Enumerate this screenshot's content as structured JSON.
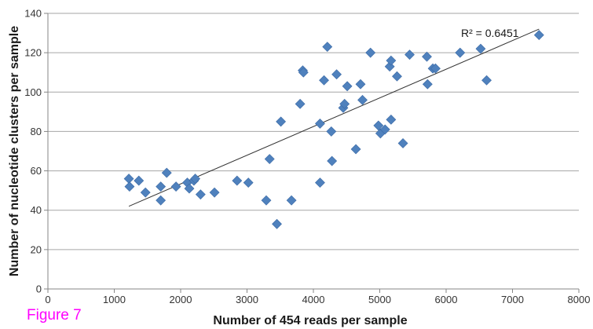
{
  "figure_label": "Figure 7",
  "chart_data": {
    "type": "scatter",
    "title": "",
    "xlabel": "Number of 454 reads per sample",
    "ylabel": "Number of nucleotide clusters per sample",
    "xlim": [
      0,
      8000
    ],
    "ylim": [
      0,
      140
    ],
    "x_ticks": [
      0,
      1000,
      2000,
      3000,
      4000,
      5000,
      6000,
      7000,
      8000
    ],
    "y_ticks": [
      0,
      20,
      40,
      60,
      80,
      100,
      120,
      140
    ],
    "grid": "horizontal",
    "legend": "none",
    "marker": "diamond",
    "marker_color": "#4f81bd",
    "trendline_color": "#333333",
    "trendline": {
      "type": "linear",
      "label": "R² = 0.6451",
      "x_start": 1220,
      "y_start": 42,
      "x_end": 7400,
      "y_end": 132
    },
    "points": [
      {
        "x": 1220,
        "y": 56
      },
      {
        "x": 1230,
        "y": 52
      },
      {
        "x": 1370,
        "y": 55
      },
      {
        "x": 1470,
        "y": 49
      },
      {
        "x": 1700,
        "y": 52
      },
      {
        "x": 1700,
        "y": 45
      },
      {
        "x": 1790,
        "y": 59
      },
      {
        "x": 1930,
        "y": 52
      },
      {
        "x": 2100,
        "y": 54
      },
      {
        "x": 2130,
        "y": 51
      },
      {
        "x": 2200,
        "y": 55
      },
      {
        "x": 2220,
        "y": 56
      },
      {
        "x": 2300,
        "y": 48
      },
      {
        "x": 2510,
        "y": 49
      },
      {
        "x": 2850,
        "y": 55
      },
      {
        "x": 3020,
        "y": 54
      },
      {
        "x": 3290,
        "y": 45
      },
      {
        "x": 3340,
        "y": 66
      },
      {
        "x": 3450,
        "y": 33
      },
      {
        "x": 3510,
        "y": 85
      },
      {
        "x": 3670,
        "y": 45
      },
      {
        "x": 3800,
        "y": 94
      },
      {
        "x": 3840,
        "y": 111
      },
      {
        "x": 3850,
        "y": 110
      },
      {
        "x": 4100,
        "y": 84
      },
      {
        "x": 4100,
        "y": 54
      },
      {
        "x": 4160,
        "y": 106
      },
      {
        "x": 4210,
        "y": 123
      },
      {
        "x": 4270,
        "y": 80
      },
      {
        "x": 4280,
        "y": 65
      },
      {
        "x": 4350,
        "y": 109
      },
      {
        "x": 4450,
        "y": 92
      },
      {
        "x": 4470,
        "y": 94
      },
      {
        "x": 4510,
        "y": 103
      },
      {
        "x": 4640,
        "y": 71
      },
      {
        "x": 4710,
        "y": 104
      },
      {
        "x": 4740,
        "y": 96
      },
      {
        "x": 4860,
        "y": 120
      },
      {
        "x": 4980,
        "y": 83
      },
      {
        "x": 5010,
        "y": 79
      },
      {
        "x": 5080,
        "y": 81
      },
      {
        "x": 5150,
        "y": 113
      },
      {
        "x": 5170,
        "y": 116
      },
      {
        "x": 5170,
        "y": 86
      },
      {
        "x": 5260,
        "y": 108
      },
      {
        "x": 5350,
        "y": 74
      },
      {
        "x": 5450,
        "y": 119
      },
      {
        "x": 5710,
        "y": 118
      },
      {
        "x": 5720,
        "y": 104
      },
      {
        "x": 5800,
        "y": 112
      },
      {
        "x": 5840,
        "y": 112
      },
      {
        "x": 6210,
        "y": 120
      },
      {
        "x": 6520,
        "y": 122
      },
      {
        "x": 6610,
        "y": 106
      },
      {
        "x": 7400,
        "y": 129
      }
    ]
  }
}
